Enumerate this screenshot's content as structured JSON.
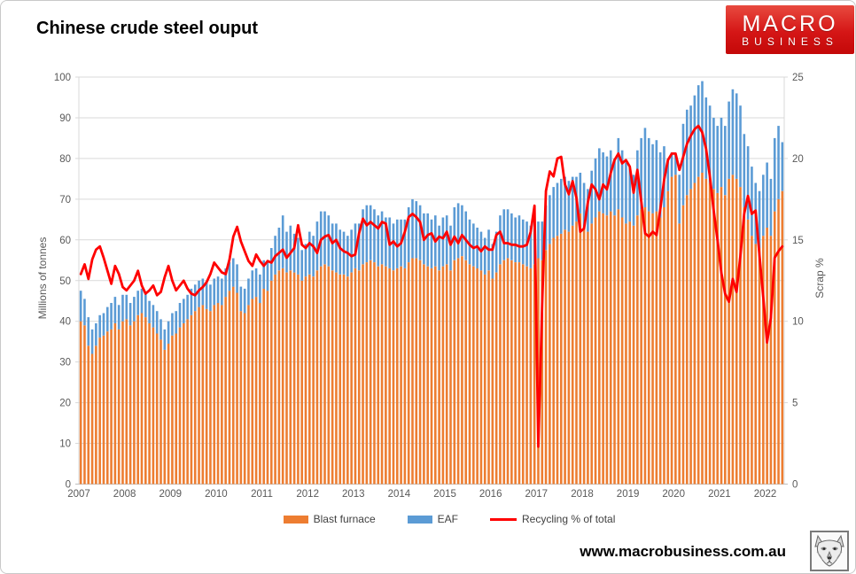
{
  "header": {
    "title": "Chinese crude steel ouput",
    "logo": {
      "line1": "MACRO",
      "line2": "BUSINESS"
    }
  },
  "footer": {
    "website": "www.macrobusiness.com.au"
  },
  "chart_data": {
    "type": "bar",
    "subtype": "stacked-monthly-bars-with-line",
    "title": "Chinese crude steel ouput",
    "left_axis": {
      "label": "Millions of tonnes",
      "ticks": [
        0,
        10,
        20,
        30,
        40,
        50,
        60,
        70,
        80,
        90,
        100
      ],
      "range": [
        0,
        100
      ]
    },
    "right_axis": {
      "label": "Scrap %",
      "ticks": [
        0,
        5,
        10,
        15,
        20,
        25
      ],
      "range": [
        0,
        25
      ]
    },
    "x_axis": {
      "year_labels": [
        "2007",
        "2008",
        "2009",
        "2010",
        "2011",
        "2012",
        "2013",
        "2014",
        "2015",
        "2016",
        "2017",
        "2018",
        "2019",
        "2020",
        "2021",
        "2022"
      ],
      "start": "2007-01",
      "end": "2022-05",
      "months_per_year": 12
    },
    "grid": {
      "horizontal": true,
      "vertical": false,
      "color": "#d9d9d9"
    },
    "legend": [
      {
        "label": "Blast furnace",
        "color": "#ED7D31",
        "type": "bar"
      },
      {
        "label": "EAF",
        "color": "#5B9BD5",
        "type": "bar"
      },
      {
        "label": "Recycling % of total",
        "color": "#FF0000",
        "type": "line"
      }
    ],
    "legend_position": "bottom",
    "series": {
      "blast_furnace": [
        40,
        39,
        34,
        32,
        34,
        36,
        36.5,
        37.5,
        38,
        39.5,
        38,
        40,
        40.5,
        39,
        40,
        41.5,
        42,
        41,
        39.5,
        38.5,
        37,
        35.5,
        33,
        34.5,
        36.5,
        37,
        38.5,
        39.5,
        40.5,
        41.5,
        42.5,
        43.5,
        44,
        43,
        42.5,
        44,
        44.5,
        44,
        46,
        47.5,
        48.5,
        47,
        42.5,
        42,
        44,
        45.5,
        46,
        44.5,
        48,
        47.5,
        50,
        51.5,
        52.5,
        53,
        52,
        52.5,
        52,
        51.5,
        50,
        51,
        51.5,
        51,
        52.5,
        53.5,
        54,
        53.5,
        52.5,
        52,
        51.5,
        51.5,
        51,
        52,
        53,
        52.5,
        54,
        54.5,
        55,
        54.5,
        53.5,
        54,
        53.5,
        53,
        52.5,
        53,
        53.5,
        53,
        54.5,
        55.5,
        55.5,
        55,
        54,
        53.5,
        53,
        53.5,
        52.5,
        53.5,
        54,
        52.5,
        55,
        55.5,
        56,
        55,
        54,
        53.5,
        53,
        52.5,
        51.5,
        52.5,
        50.5,
        52,
        54,
        55,
        55.5,
        55,
        54.5,
        54.5,
        54,
        53.5,
        53,
        54,
        55.5,
        55,
        57.5,
        59,
        60.5,
        61,
        61.5,
        62.5,
        62,
        63.5,
        64.5,
        66.5,
        63,
        62,
        64,
        65.5,
        67,
        66.5,
        66,
        67,
        66,
        67.5,
        65.5,
        64,
        64.5,
        63.5,
        66,
        67.5,
        68,
        67,
        66.5,
        67,
        65.5,
        68,
        72,
        75.5,
        76,
        64,
        68.5,
        71,
        72.5,
        74,
        75.5,
        76.5,
        75,
        74,
        72.5,
        71.5,
        73,
        71,
        75,
        76,
        75,
        73,
        68,
        65,
        61,
        59,
        58,
        61,
        63,
        61,
        67,
        70,
        72
      ],
      "eaf": [
        7.5,
        6.5,
        7,
        6,
        5.5,
        5.5,
        5.5,
        6,
        6.5,
        6.5,
        6,
        6.5,
        6,
        5.5,
        6,
        6,
        6,
        6,
        5.5,
        5.5,
        5.5,
        5,
        5,
        5.5,
        5.5,
        5.5,
        6,
        6,
        6,
        6.5,
        6.5,
        6.5,
        6.5,
        6.5,
        6.5,
        6.5,
        6.5,
        6.5,
        7,
        7,
        7,
        7,
        6,
        6,
        6.5,
        7,
        7,
        7,
        7,
        7.5,
        8,
        9.5,
        10.5,
        13,
        10,
        11,
        9.5,
        9,
        7.5,
        8,
        10.5,
        10,
        12,
        13.5,
        13,
        12.5,
        11.5,
        12,
        11,
        10.5,
        10,
        10.5,
        11,
        11.5,
        13.5,
        14,
        13.5,
        13,
        12.5,
        13,
        12,
        12.5,
        11.5,
        12,
        11.5,
        12,
        13.5,
        14.5,
        14,
        13.5,
        12.5,
        13,
        12,
        12.5,
        11,
        12,
        12,
        11,
        13,
        13.5,
        12.5,
        12,
        11,
        10.5,
        10,
        9.5,
        9,
        10,
        8.5,
        10,
        12,
        12.5,
        12,
        11.5,
        11,
        11.5,
        11,
        11,
        10.5,
        11.5,
        9,
        9.5,
        11,
        12,
        12.5,
        13,
        13.5,
        13,
        12.5,
        12,
        11,
        10,
        11,
        10.5,
        13,
        14.5,
        15.5,
        15,
        14.5,
        15,
        14,
        17.5,
        16.5,
        15,
        13.5,
        12.5,
        16,
        17.5,
        19.5,
        18,
        17,
        17.5,
        16,
        15,
        8,
        6,
        5,
        12,
        20,
        21,
        20.5,
        21.5,
        22.5,
        22.5,
        20,
        19,
        17.5,
        16.5,
        17,
        17,
        19,
        21,
        21,
        20,
        18,
        18,
        17,
        15,
        14,
        15,
        16,
        14,
        18,
        18,
        12
      ],
      "recycling_pct": [
        12.9,
        13.5,
        12.6,
        13.8,
        14.4,
        14.6,
        13.9,
        13.1,
        12.3,
        13.4,
        12.9,
        12.1,
        11.9,
        12.2,
        12.5,
        13.1,
        12.2,
        11.7,
        11.9,
        12.2,
        11.6,
        11.8,
        12.7,
        13.4,
        12.5,
        11.9,
        12.2,
        12.5,
        12,
        11.7,
        11.6,
        11.9,
        12.1,
        12.4,
        12.9,
        13.6,
        13.3,
        13,
        12.9,
        13.8,
        15.2,
        15.8,
        14.9,
        14.3,
        13.7,
        13.4,
        14.1,
        13.7,
        13.4,
        13.7,
        13.6,
        14,
        14.2,
        14.4,
        13.9,
        14.2,
        14.5,
        15.9,
        14.7,
        14.5,
        14.8,
        14.6,
        14.2,
        15,
        15.2,
        15.3,
        14.8,
        15,
        14.5,
        14.3,
        14.2,
        14,
        14.1,
        15.4,
        16.3,
        15.9,
        16.1,
        15.9,
        15.7,
        16.1,
        16,
        14.7,
        14.9,
        14.6,
        14.8,
        15.5,
        16.4,
        16.6,
        16.4,
        16.1,
        15,
        15.3,
        15.4,
        14.9,
        15.2,
        15.1,
        15.5,
        14.7,
        15.2,
        14.8,
        15.3,
        15,
        14.7,
        14.5,
        14.6,
        14.3,
        14.6,
        14.4,
        14.4,
        15.3,
        15.5,
        14.8,
        14.8,
        14.7,
        14.7,
        14.6,
        14.6,
        14.7,
        15.5,
        17.1,
        2.3,
        11,
        18,
        19.2,
        18.9,
        20,
        20.1,
        18.4,
        17.8,
        18.6,
        17.6,
        15.5,
        15.7,
        17.3,
        18.4,
        18.1,
        17.5,
        18.4,
        18.1,
        19.1,
        19.9,
        20.3,
        19.7,
        19.9,
        19.5,
        17.9,
        19.3,
        17.4,
        15.4,
        15.2,
        15.5,
        15.3,
        16.9,
        18.7,
        19.9,
        20.3,
        20.3,
        19.3,
        20.1,
        20.9,
        21.4,
        21.8,
        22,
        21.6,
        20.6,
        18.9,
        16.8,
        15,
        13,
        11.7,
        11.2,
        12.6,
        11.8,
        14,
        16.6,
        17.7,
        16.6,
        16.8,
        14.1,
        11.5,
        8.7,
        10.2,
        13.9,
        14.3,
        14.6
      ]
    },
    "colors": {
      "blast_furnace": "#ED7D31",
      "eaf": "#5B9BD5",
      "recycling_line": "#FF0000",
      "grid": "#d9d9d9",
      "axis_text": "#595959",
      "axis_line": "#bfbfbf"
    }
  }
}
